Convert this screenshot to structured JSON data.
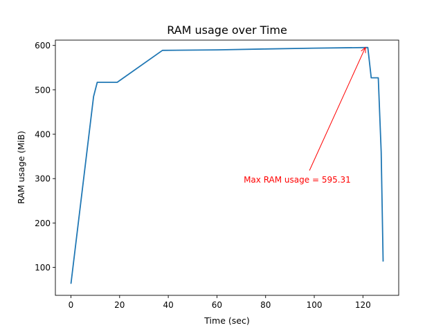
{
  "chart_data": {
    "type": "line",
    "title": "RAM usage over Time",
    "xlabel": "Time (sec)",
    "ylabel": "RAM usage (MiB)",
    "xlim": [
      -6.4,
      134.7
    ],
    "ylim": [
      37,
      612
    ],
    "xticks": [
      0,
      20,
      40,
      60,
      80,
      100,
      120
    ],
    "yticks": [
      100,
      200,
      300,
      400,
      500,
      600
    ],
    "grid": false,
    "series": [
      {
        "color": "#1f77b4",
        "x": [
          0,
          9.3,
          10.8,
          19,
          37.6,
          60,
          80,
          100,
          122,
          123.4,
          126.3,
          127.5,
          128.3
        ],
        "y": [
          63,
          485,
          517,
          517,
          589,
          590,
          592,
          594,
          595.31,
          527,
          527,
          360,
          113
        ]
      }
    ],
    "annotations": [
      {
        "text": "Max RAM usage = 595.31",
        "color": "#ff0000",
        "xy": [
          121,
          595.31
        ],
        "xytext": [
          71,
          298
        ]
      }
    ]
  }
}
